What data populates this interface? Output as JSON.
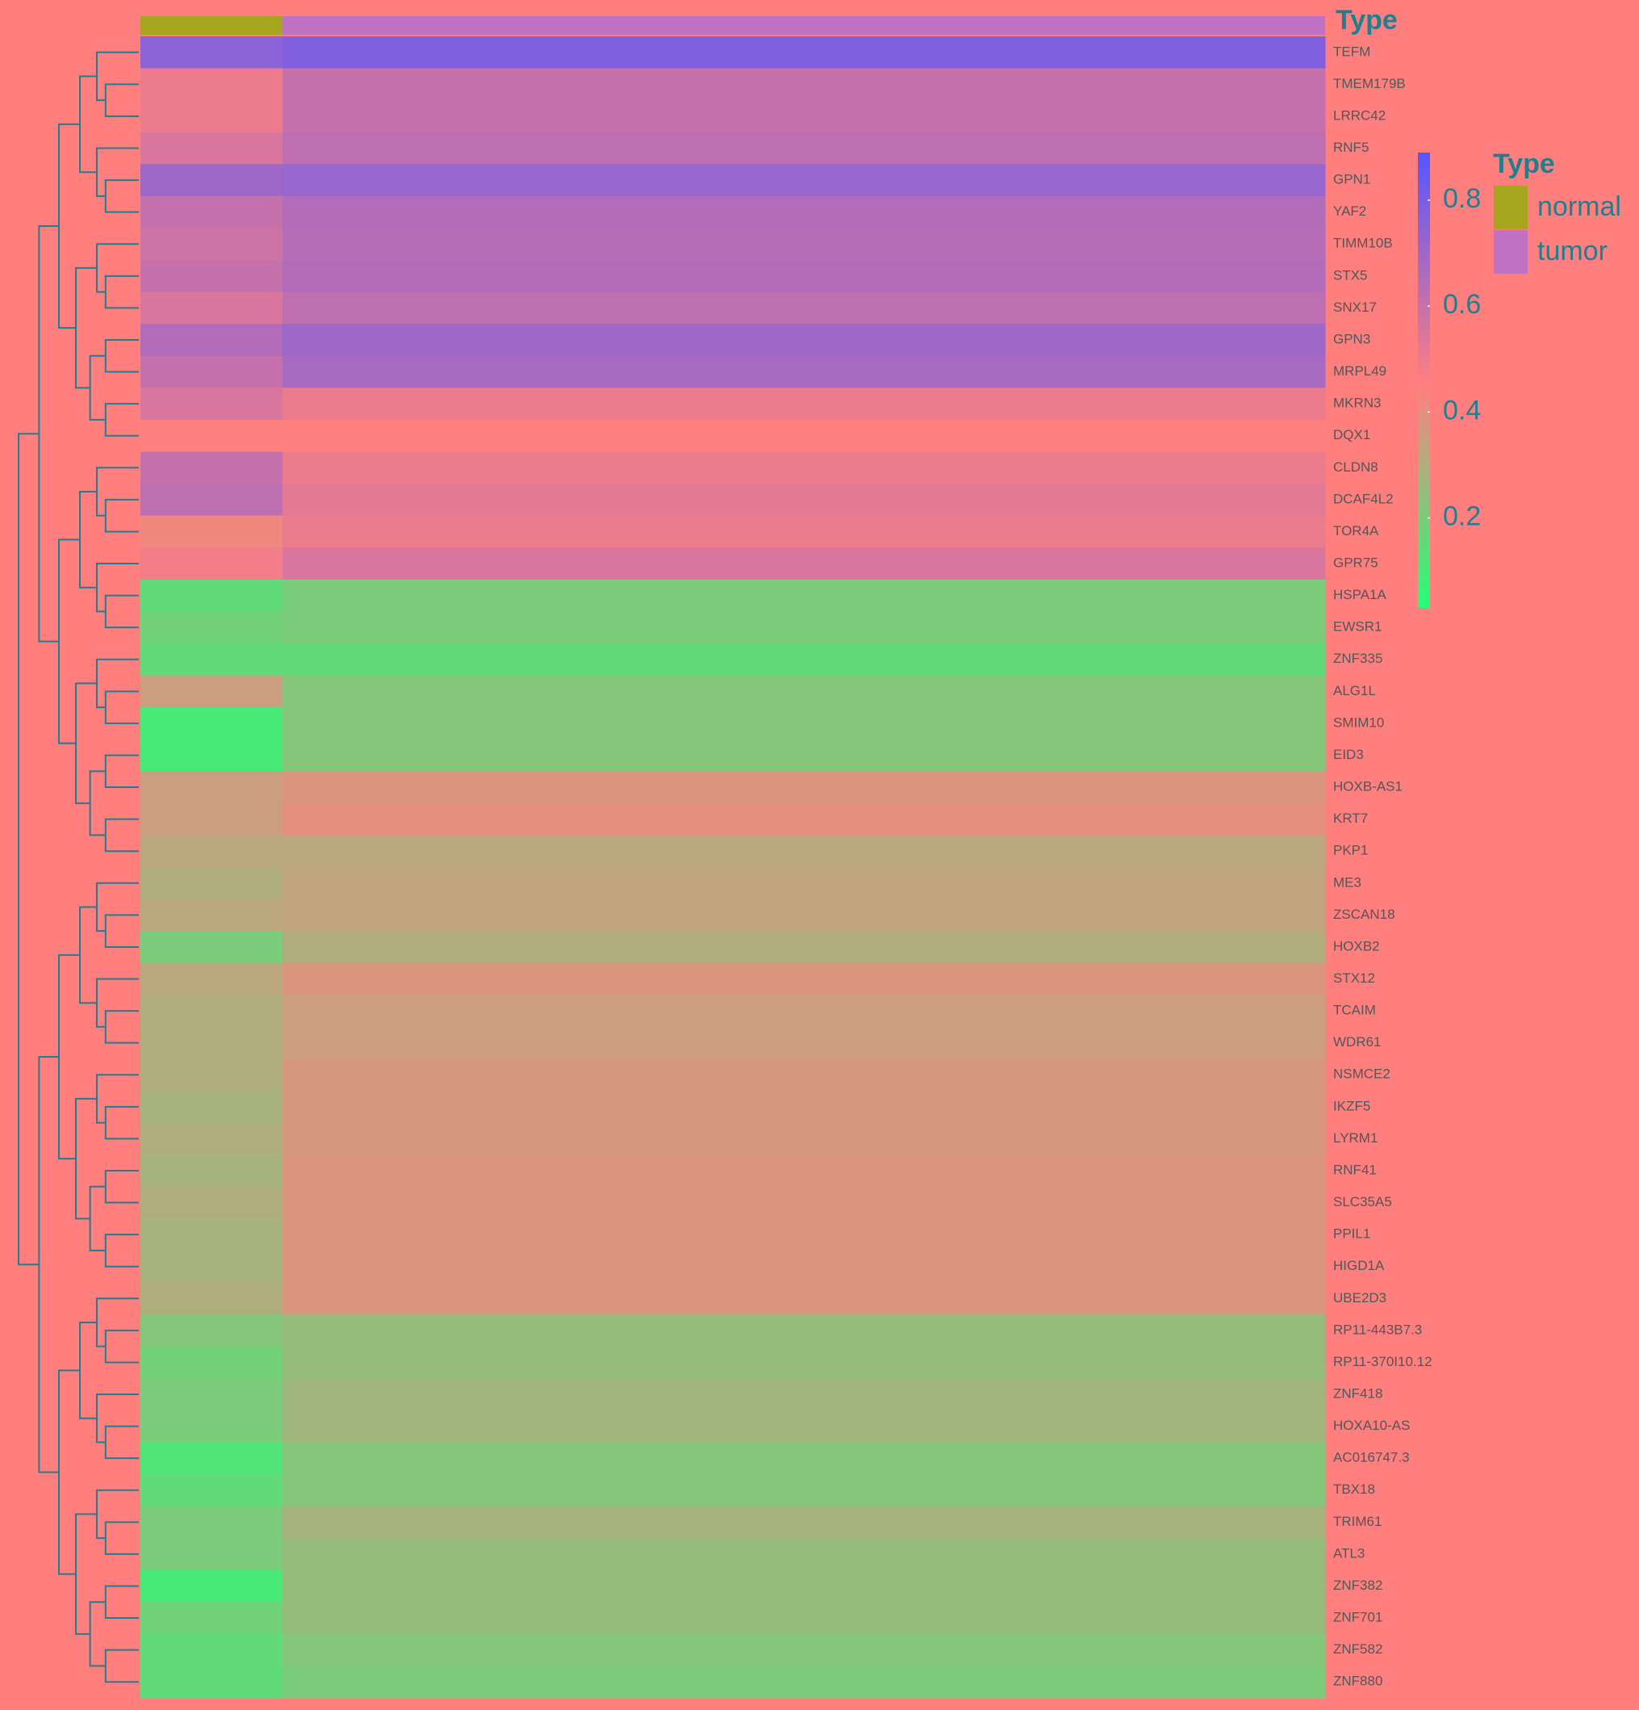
{
  "chart_data": {
    "type": "heatmap",
    "annotation_title": "Type",
    "legend_title": "Type",
    "groups": [
      {
        "name": "normal",
        "color": "#a6a61e"
      },
      {
        "name": "tumor",
        "color": "#c071c4"
      }
    ],
    "rows": [
      "TEFM",
      "TMEM179B",
      "LRRC42",
      "RNF5",
      "GPN1",
      "YAF2",
      "TIMM10B",
      "STX5",
      "SNX17",
      "GPN3",
      "MRPL49",
      "MKRN3",
      "DQX1",
      "CLDN8",
      "DCAF4L2",
      "TOR4A",
      "GPR75",
      "HSPA1A",
      "EWSR1",
      "ZNF335",
      "ALG1L",
      "SMIM10",
      "EID3",
      "HOXB-AS1",
      "KRT7",
      "PKP1",
      "ME3",
      "ZSCAN18",
      "HOXB2",
      "STX12",
      "TCAIM",
      "WDR61",
      "NSMCE2",
      "IKZF5",
      "LYRM1",
      "RNF41",
      "SLC35A5",
      "PPIL1",
      "HIGD1A",
      "UBE2D3",
      "RP11-443B7.3",
      "RP11-370I10.12",
      "ZNF418",
      "HOXA10-AS",
      "AC016747.3",
      "TBX18",
      "TRIM61",
      "ATL3",
      "ZNF382",
      "ZNF701",
      "ZNF582",
      "ZNF880"
    ],
    "values": [
      [
        0.75,
        0.78
      ],
      [
        0.5,
        0.6
      ],
      [
        0.5,
        0.6
      ],
      [
        0.55,
        0.62
      ],
      [
        0.7,
        0.72
      ],
      [
        0.6,
        0.65
      ],
      [
        0.58,
        0.64
      ],
      [
        0.6,
        0.65
      ],
      [
        0.55,
        0.62
      ],
      [
        0.65,
        0.7
      ],
      [
        0.6,
        0.68
      ],
      [
        0.55,
        0.5
      ],
      [
        0.45,
        0.45
      ],
      [
        0.6,
        0.5
      ],
      [
        0.62,
        0.52
      ],
      [
        0.42,
        0.5
      ],
      [
        0.48,
        0.55
      ],
      [
        0.15,
        0.2
      ],
      [
        0.18,
        0.2
      ],
      [
        0.15,
        0.15
      ],
      [
        0.35,
        0.22
      ],
      [
        0.1,
        0.22
      ],
      [
        0.1,
        0.22
      ],
      [
        0.35,
        0.38
      ],
      [
        0.35,
        0.4
      ],
      [
        0.32,
        0.32
      ],
      [
        0.3,
        0.33
      ],
      [
        0.32,
        0.33
      ],
      [
        0.2,
        0.3
      ],
      [
        0.32,
        0.38
      ],
      [
        0.3,
        0.35
      ],
      [
        0.3,
        0.35
      ],
      [
        0.3,
        0.37
      ],
      [
        0.28,
        0.37
      ],
      [
        0.3,
        0.37
      ],
      [
        0.28,
        0.38
      ],
      [
        0.3,
        0.38
      ],
      [
        0.28,
        0.38
      ],
      [
        0.28,
        0.38
      ],
      [
        0.3,
        0.38
      ],
      [
        0.22,
        0.25
      ],
      [
        0.18,
        0.25
      ],
      [
        0.2,
        0.27
      ],
      [
        0.2,
        0.27
      ],
      [
        0.12,
        0.22
      ],
      [
        0.15,
        0.22
      ],
      [
        0.2,
        0.28
      ],
      [
        0.2,
        0.25
      ],
      [
        0.1,
        0.25
      ],
      [
        0.18,
        0.25
      ],
      [
        0.15,
        0.22
      ],
      [
        0.15,
        0.2
      ]
    ],
    "zlim": [
      0.03,
      0.89
    ],
    "zticks": [
      0.2,
      0.4,
      0.6,
      0.8
    ],
    "colorscale": [
      {
        "value": 0.03,
        "color": "#22ff77"
      },
      {
        "value": 0.45,
        "color": "#ff8080"
      },
      {
        "value": 0.89,
        "color": "#5555ff"
      }
    ]
  }
}
